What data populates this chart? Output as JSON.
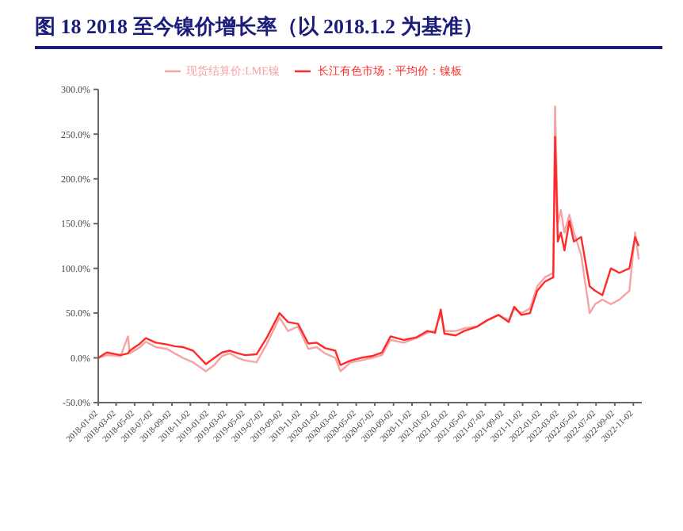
{
  "chart_data": {
    "type": "line",
    "title": "图 18 2018 至今镍价增长率（以 2018.1.2 为基准）",
    "x": [
      "2018-01-02",
      "2018-01-30",
      "2018-03-17",
      "2018-04-10",
      "2018-04-16",
      "2018-05-20",
      "2018-06-08",
      "2018-07-11",
      "2018-08-17",
      "2018-09-11",
      "2018-10-08",
      "2018-11-11",
      "2018-12-23",
      "2019-01-20",
      "2019-02-14",
      "2019-03-11",
      "2019-04-08",
      "2019-05-02",
      "2019-06-08",
      "2019-07-11",
      "2019-08-23",
      "2019-09-20",
      "2019-10-23",
      "2019-11-26",
      "2019-12-23",
      "2020-01-20",
      "2020-02-23",
      "2020-03-11",
      "2020-04-14",
      "2020-05-17",
      "2020-06-23",
      "2020-07-26",
      "2020-08-23",
      "2020-10-05",
      "2020-11-17",
      "2020-12-23",
      "2021-01-17",
      "2021-02-05",
      "2021-02-17",
      "2021-03-26",
      "2021-04-23",
      "2021-06-05",
      "2021-07-08",
      "2021-08-14",
      "2021-09-17",
      "2021-10-05",
      "2021-10-29",
      "2021-11-26",
      "2021-12-20",
      "2022-01-14",
      "2022-02-11",
      "2022-02-17",
      "2022-02-26",
      "2022-03-08",
      "2022-03-20",
      "2022-04-05",
      "2022-04-20",
      "2022-05-14",
      "2022-06-11",
      "2022-06-29",
      "2022-07-23",
      "2022-08-20",
      "2022-09-17",
      "2022-10-20",
      "2022-11-08",
      "2022-11-20"
    ],
    "series": [
      {
        "name": "现货结算价:LME镍",
        "color": "#f5a3a3",
        "values": [
          0,
          3,
          2,
          24,
          5,
          12,
          18,
          12,
          10,
          5,
          0,
          -5,
          -15,
          -8,
          2,
          5,
          0,
          -3,
          -5,
          15,
          45,
          30,
          35,
          10,
          12,
          5,
          0,
          -15,
          -5,
          -3,
          0,
          3,
          20,
          17,
          22,
          28,
          30,
          50,
          30,
          30,
          33,
          35,
          42,
          48,
          42,
          55,
          50,
          55,
          80,
          90,
          95,
          281,
          150,
          165,
          140,
          160,
          140,
          115,
          50,
          60,
          65,
          60,
          65,
          75,
          140,
          110
        ]
      },
      {
        "name": "长江有色市场：平均价：镍板",
        "color": "#ff2a2a",
        "values": [
          0,
          6,
          3,
          5,
          8,
          16,
          22,
          17,
          15,
          13,
          12,
          8,
          -7,
          0,
          6,
          8,
          5,
          3,
          4,
          22,
          50,
          40,
          38,
          16,
          17,
          11,
          8,
          -8,
          -3,
          0,
          2,
          6,
          24,
          20,
          23,
          30,
          28,
          54,
          27,
          25,
          30,
          35,
          42,
          48,
          40,
          57,
          48,
          50,
          75,
          85,
          90,
          247,
          130,
          140,
          120,
          153,
          130,
          135,
          80,
          75,
          70,
          100,
          95,
          100,
          135,
          125
        ]
      }
    ],
    "xlim": [
      "2018-01-02",
      "2022-11-30"
    ],
    "xticks": [
      "2018-01-02",
      "2018-03-02",
      "2018-05-02",
      "2018-07-02",
      "2018-09-02",
      "2018-11-02",
      "2019-01-02",
      "2019-03-02",
      "2019-05-02",
      "2019-07-02",
      "2019-09-02",
      "2019-11-02",
      "2020-01-02",
      "2020-03-02",
      "2020-05-02",
      "2020-07-02",
      "2020-09-02",
      "2020-11-02",
      "2021-01-02",
      "2021-03-02",
      "2021-05-02",
      "2021-07-02",
      "2021-09-02",
      "2021-11-02",
      "2022-01-02",
      "2022-03-02",
      "2022-05-02",
      "2022-07-02",
      "2022-09-02",
      "2022-11-02"
    ],
    "ylim": [
      -50,
      300
    ],
    "yticks": [
      {
        "value": -50,
        "label": "-50.0%"
      },
      {
        "value": 0,
        "label": "0.0%"
      },
      {
        "value": 50,
        "label": "50.0%"
      },
      {
        "value": 100,
        "label": "100.0%"
      },
      {
        "value": 150,
        "label": "150.0%"
      },
      {
        "value": 200,
        "label": "200.0%"
      },
      {
        "value": 250,
        "label": "250.0%"
      },
      {
        "value": 300,
        "label": "300.0%"
      }
    ],
    "legend": "top",
    "grid": false,
    "marker": "none",
    "line_style": "solid"
  }
}
